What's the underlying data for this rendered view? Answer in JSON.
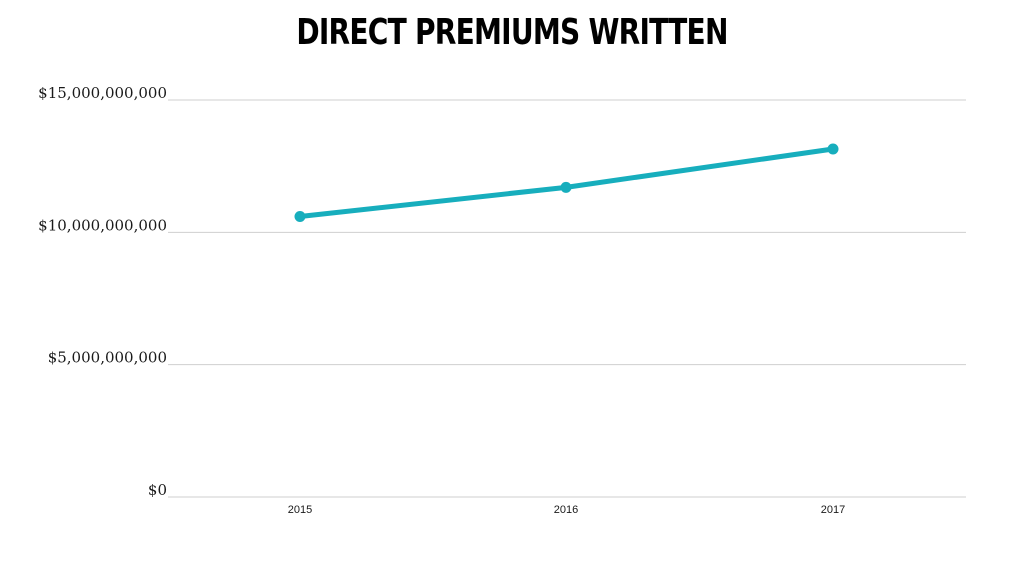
{
  "chart_data": {
    "type": "line",
    "title": "Direct Premiums Written",
    "xlabel": "",
    "ylabel": "",
    "categories": [
      "2015",
      "2016",
      "2017"
    ],
    "series": [
      {
        "values": [
          10600000000,
          11700000000,
          13150000000
        ],
        "color": "#17aebd"
      }
    ],
    "ylim": [
      0,
      15000000000
    ],
    "yticks": [
      0,
      5000000000,
      10000000000,
      15000000000
    ],
    "ytick_labels": [
      "$0",
      "$5,000,000,000",
      "$10,000,000,000",
      "$15,000,000,000"
    ],
    "grid": true,
    "legend": "none"
  }
}
